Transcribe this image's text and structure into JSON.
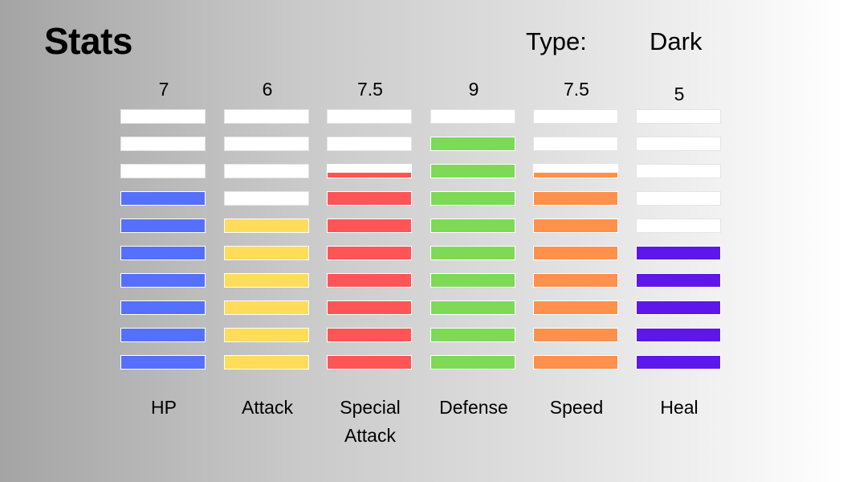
{
  "title": "Stats",
  "type_label": "Type:",
  "type_value": "Dark",
  "max_segments": 10,
  "stats": [
    {
      "label": "HP",
      "value_text": "7",
      "value": 7,
      "color": "#5470fd"
    },
    {
      "label": "Attack",
      "value_text": "6",
      "value": 6,
      "color": "#ffdc5a"
    },
    {
      "label": "Special Attack",
      "value_text": "7.5",
      "value": 7.5,
      "color": "#ff5556"
    },
    {
      "label": "Defense",
      "value_text": "9",
      "value": 9,
      "color": "#7ed957"
    },
    {
      "label": "Speed",
      "value_text": "7.5",
      "value": 7.5,
      "color": "#ff914d"
    },
    {
      "label": "Heal",
      "value_text": "5",
      "value": 5,
      "color": "#5e17eb"
    }
  ]
}
